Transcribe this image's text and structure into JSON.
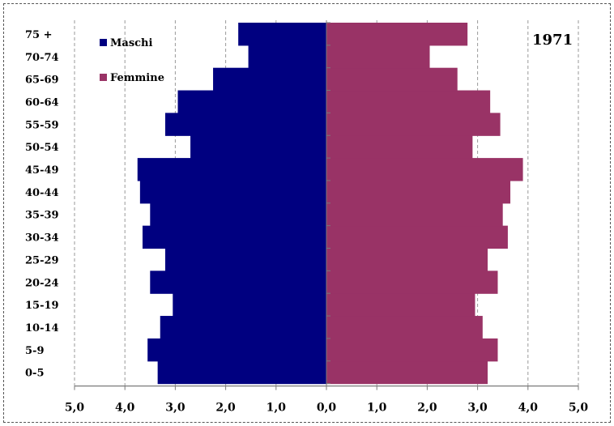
{
  "chart_data": {
    "type": "bar",
    "orientation": "horizontal",
    "layout": "population-pyramid",
    "annotation": "1971",
    "categories": [
      "0-5",
      "5-9",
      "10-14",
      "15-19",
      "20-24",
      "25-29",
      "30-34",
      "35-39",
      "40-44",
      "45-49",
      "50-54",
      "55-59",
      "60-64",
      "65-69",
      "70-74",
      "75 +"
    ],
    "series": [
      {
        "name": "Maschi",
        "side": "left",
        "color": "#000080",
        "values": [
          3.35,
          3.55,
          3.3,
          3.05,
          3.5,
          3.2,
          3.65,
          3.5,
          3.7,
          3.75,
          2.7,
          3.2,
          2.95,
          2.25,
          1.55,
          1.75
        ]
      },
      {
        "name": "Femmine",
        "side": "right",
        "color": "#993366",
        "values": [
          3.2,
          3.4,
          3.1,
          2.95,
          3.4,
          3.2,
          3.6,
          3.5,
          3.65,
          3.9,
          2.9,
          3.45,
          3.25,
          2.6,
          2.05,
          2.8
        ]
      }
    ],
    "x_ticks": [
      "5,0",
      "4,0",
      "3,0",
      "2,0",
      "1,0",
      "0,0",
      "1,0",
      "2,0",
      "3,0",
      "4,0",
      "5,0"
    ],
    "xlim": [
      -5,
      5
    ],
    "grid": "vertical-dashed",
    "legend_position": "top-left"
  }
}
